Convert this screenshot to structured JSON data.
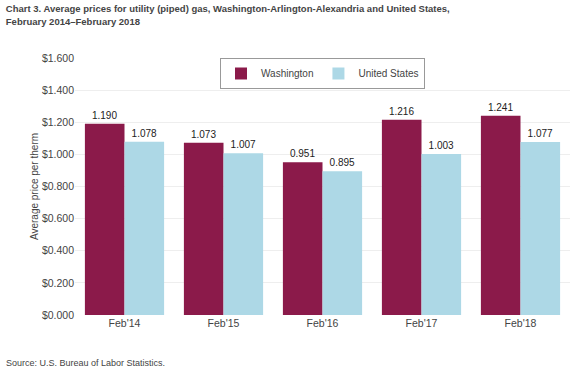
{
  "chart_data": {
    "type": "bar",
    "title": "Chart 3. Average prices for utility (piped) gas, Washington-Arlington-Alexandria and United States,\nFebruary 2014–February 2018",
    "ylabel": "Average price per therm",
    "source": "Source: U.S. Bureau of Labor Statistics.",
    "categories": [
      "Feb'14",
      "Feb'15",
      "Feb'16",
      "Feb'17",
      "Feb'18"
    ],
    "series": [
      {
        "name": "Washington",
        "color": "#8B1A4A",
        "values": [
          1.19,
          1.073,
          0.951,
          1.216,
          1.241
        ],
        "value_labels": [
          "1.190",
          "1.073",
          "0.951",
          "1.216",
          "1.241"
        ]
      },
      {
        "name": "United States",
        "color": "#ADD8E6",
        "values": [
          1.078,
          1.007,
          0.895,
          1.003,
          1.077
        ],
        "value_labels": [
          "1.078",
          "1.007",
          "0.895",
          "1.003",
          "1.077"
        ]
      }
    ],
    "ylim": [
      0,
      1.6
    ],
    "yticks": [
      {
        "value": 0.0,
        "label": "$0.000"
      },
      {
        "value": 0.2,
        "label": "$0.200"
      },
      {
        "value": 0.4,
        "label": "$0.400"
      },
      {
        "value": 0.6,
        "label": "$0.600"
      },
      {
        "value": 0.8,
        "label": "$0.800"
      },
      {
        "value": 1.0,
        "label": "$1.000"
      },
      {
        "value": 1.2,
        "label": "$1.200"
      },
      {
        "value": 1.4,
        "label": "$1.400"
      },
      {
        "value": 1.6,
        "label": "$1.600"
      }
    ],
    "grid": true,
    "legend": "top",
    "data_labels": true
  }
}
